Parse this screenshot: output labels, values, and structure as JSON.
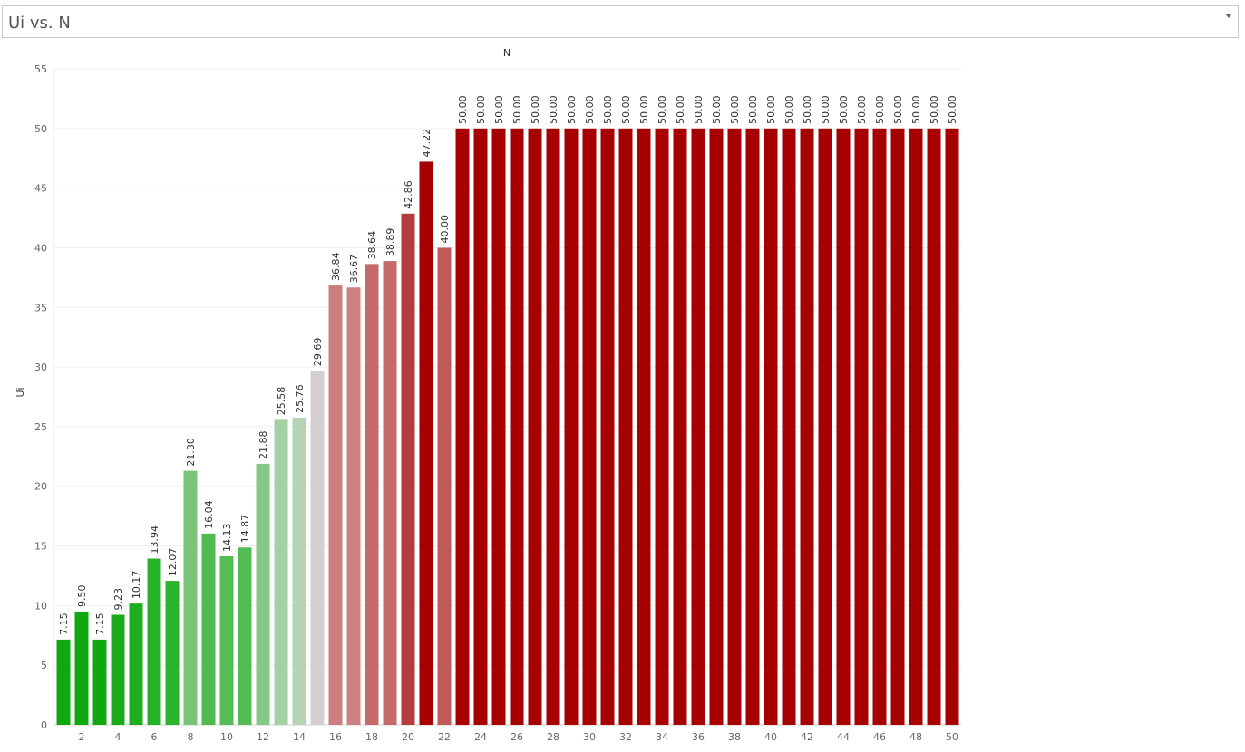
{
  "selector": {
    "title": "Ui vs. N"
  },
  "chart_data": {
    "type": "bar",
    "title": "",
    "xlabel": "N",
    "ylabel": "Ui",
    "ylim": [
      0,
      55
    ],
    "yticks": [
      0,
      5,
      10,
      15,
      20,
      25,
      30,
      35,
      40,
      45,
      50,
      55
    ],
    "xtick_labels": [
      "2",
      "4",
      "6",
      "8",
      "10",
      "12",
      "14",
      "16",
      "18",
      "20",
      "22",
      "24",
      "26",
      "28",
      "30",
      "32",
      "34",
      "36",
      "38",
      "40",
      "42",
      "44",
      "46",
      "48",
      "50"
    ],
    "categories": [
      1,
      2,
      3,
      4,
      5,
      6,
      7,
      8,
      9,
      10,
      11,
      12,
      13,
      14,
      15,
      16,
      17,
      18,
      19,
      20,
      21,
      22,
      23,
      24,
      25,
      26,
      27,
      28,
      29,
      30,
      31,
      32,
      33,
      34,
      35,
      36,
      37,
      38,
      39,
      40,
      41,
      42,
      43,
      44,
      45,
      46,
      47,
      48,
      49,
      50
    ],
    "values": [
      7.15,
      9.5,
      7.15,
      9.23,
      10.17,
      13.94,
      12.07,
      21.3,
      16.04,
      14.13,
      14.87,
      21.88,
      25.58,
      25.76,
      29.69,
      36.84,
      36.67,
      38.64,
      38.89,
      42.86,
      47.22,
      40.0,
      50,
      50,
      50,
      50,
      50,
      50,
      50,
      50,
      50,
      50,
      50,
      50,
      50,
      50,
      50,
      50,
      50,
      50,
      50,
      50,
      50,
      50,
      50,
      50,
      50,
      50,
      50,
      50
    ],
    "data_labels": [
      "7.15",
      "9.50",
      "7.15",
      "9.23",
      "10.17",
      "13.94",
      "12.07",
      "21.30",
      "16.04",
      "14.13",
      "14.87",
      "21.88",
      "25.58",
      "25.76",
      "29.69",
      "36.84",
      "36.67",
      "38.64",
      "38.89",
      "42.86",
      "47.22",
      "40.00",
      "50.00",
      "50.00",
      "50.00",
      "50.00",
      "50.00",
      "50.00",
      "50.00",
      "50.00",
      "50.00",
      "50.00",
      "50.00",
      "50.00",
      "50.00",
      "50.00",
      "50.00",
      "50.00",
      "50.00",
      "50.00",
      "50.00",
      "50.00",
      "50.00",
      "50.00",
      "50.00",
      "50.00",
      "50.00",
      "50.00",
      "50.00",
      "50.00"
    ],
    "grid": true,
    "color_scale": {
      "low": "#0aa20a",
      "mid": "#d6cfd0",
      "high": "#a60000"
    },
    "bar_colors": [
      "#10a810",
      "#10a810",
      "#10a810",
      "#1aab1a",
      "#1eae1e",
      "#27b127",
      "#2cb42c",
      "#7ac47a",
      "#4fbb4f",
      "#55bd55",
      "#52bc52",
      "#86c886",
      "#a5cfa5",
      "#b5d4b5",
      "#d6cfd0",
      "#cc7e7e",
      "#cc8080",
      "#c46a6a",
      "#c46a6a",
      "#b33c3c",
      "#a60000",
      "#c05a5a",
      "#a60000",
      "#a60000",
      "#a60000",
      "#a60000",
      "#a60000",
      "#a60000",
      "#a60000",
      "#a60000",
      "#a60000",
      "#a60000",
      "#a60000",
      "#a60000",
      "#a60000",
      "#a60000",
      "#a60000",
      "#a60000",
      "#a60000",
      "#a60000",
      "#a60000",
      "#a60000",
      "#a60000",
      "#a60000",
      "#a60000",
      "#a60000",
      "#a60000",
      "#a60000",
      "#a60000",
      "#a60000"
    ]
  }
}
